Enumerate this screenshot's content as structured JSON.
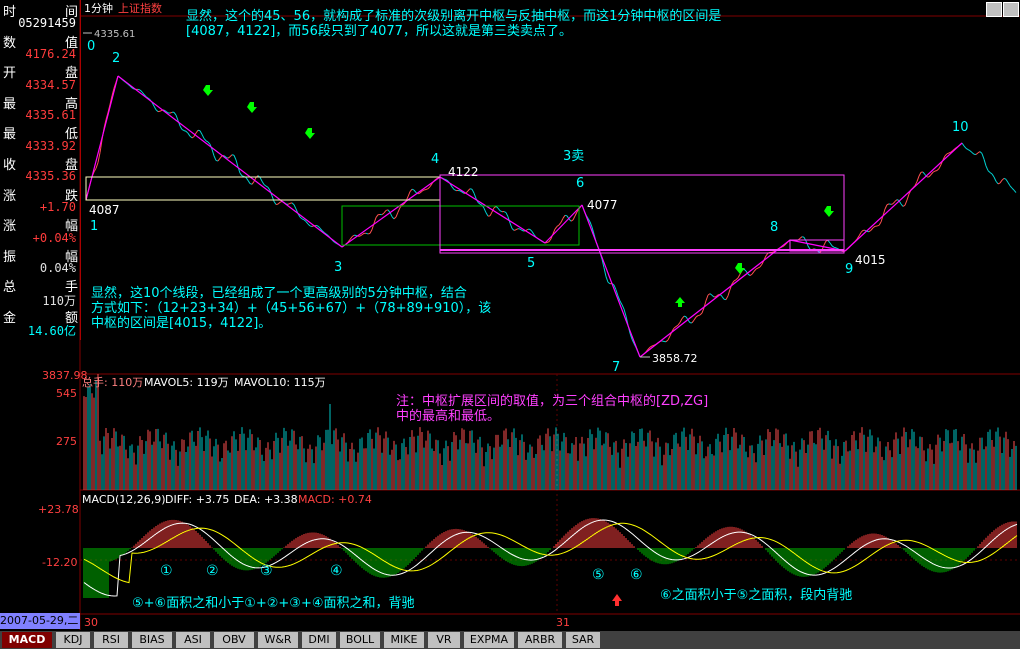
{
  "header": {
    "period": "1分钟",
    "symbol": "上证指数",
    "price_label": "4335.61"
  },
  "info_panel": [
    {
      "key": "时",
      "value": "",
      "unit": "间",
      "color": "#ffffff"
    },
    {
      "key": "",
      "value": "05291459",
      "unit": "",
      "color": "#ffffff"
    },
    {
      "key": "数",
      "value": "",
      "unit": "值",
      "color": "#ffffff"
    },
    {
      "key": "",
      "value": "4176.24",
      "unit": "",
      "color": "#ff3c3c"
    },
    {
      "key": "开",
      "value": "",
      "unit": "盘",
      "color": "#ffffff"
    },
    {
      "key": "",
      "value": "4334.57",
      "unit": "",
      "color": "#ff3c3c"
    },
    {
      "key": "最",
      "value": "",
      "unit": "高",
      "color": "#ffffff"
    },
    {
      "key": "",
      "value": "4335.61",
      "unit": "",
      "color": "#ff3c3c"
    },
    {
      "key": "最",
      "value": "",
      "unit": "低",
      "color": "#ffffff"
    },
    {
      "key": "",
      "value": "4333.92",
      "unit": "",
      "color": "#ff3c3c"
    },
    {
      "key": "收",
      "value": "",
      "unit": "盘",
      "color": "#ffffff"
    },
    {
      "key": "",
      "value": "4335.36",
      "unit": "",
      "color": "#ff3c3c"
    },
    {
      "key": "涨",
      "value": "",
      "unit": "跌",
      "color": "#ffffff"
    },
    {
      "key": "",
      "value": "+1.70",
      "unit": "",
      "color": "#ff3c3c"
    },
    {
      "key": "涨",
      "value": "",
      "unit": "幅",
      "color": "#ffffff"
    },
    {
      "key": "",
      "value": "+0.04%",
      "unit": "",
      "color": "#ff3c3c"
    },
    {
      "key": "振",
      "value": "",
      "unit": "幅",
      "color": "#ffffff"
    },
    {
      "key": "",
      "value": "0.04%",
      "unit": "",
      "color": "#e0e0e0"
    },
    {
      "key": "总",
      "value": "",
      "unit": "手",
      "color": "#ffffff"
    },
    {
      "key": "",
      "value": "110万",
      "unit": "",
      "color": "#e0e0e0"
    },
    {
      "key": "金",
      "value": "",
      "unit": "额",
      "color": "#ffffff"
    },
    {
      "key": "",
      "value": "14.60亿",
      "unit": "",
      "color": "#00ffff"
    }
  ],
  "annotations": {
    "top_note": "显然，这个的45、56，就构成了标准的次级别离开中枢与反抽中枢，而这1分钟中枢的区间是\n[4087，4122]，而56段只到了4077，所以这就是第三类卖点了。",
    "mid_note": "显然，这10个线段，已经组成了一个更高级别的5分钟中枢，结合\n方式如下：（12+23+34）+（45+56+67）+（78+89+910），该\n中枢的区间是[4015，4122]。",
    "volume_note": "注：中枢扩展区间的取值，为三个组合中枢的[ZD,ZG]\n中的最高和最低。",
    "macd_note_left": "⑤+⑥面积之和小于①+②+③+④面积之和，背驰",
    "macd_note_right": "⑥之面积小于⑤之面积，段内背驰",
    "sell3_label": "3卖",
    "circled": [
      "①",
      "②",
      "③",
      "④",
      "⑤",
      "⑥"
    ]
  },
  "volume_panel": {
    "label": "总手: 110万",
    "ma5_label": "MAVOL5: 119万",
    "ma10_label": "MAVOL10: 115万",
    "ticks": [
      "545",
      "275"
    ],
    "top_value": "3837.98"
  },
  "macd_panel": {
    "label": "MACD(12,26,9)",
    "diff_label": "DIFF: +3.75",
    "dea_label": "DEA: +3.38",
    "macd_label": "MACD: +0.74",
    "ticks": [
      "+23.78",
      "-12.20"
    ]
  },
  "footer": {
    "date": "2007-05-29,二",
    "day_labels": [
      "30",
      "31"
    ],
    "tabs": [
      "MACD",
      "KDJ",
      "RSI",
      "BIAS",
      "ASI",
      "OBV",
      "W&R",
      "DMI",
      "BOLL",
      "MIKE",
      "VR",
      "EXPMA",
      "ARBR",
      "SAR"
    ]
  },
  "chart_data": {
    "type": "line",
    "title": "",
    "segment_points": [
      {
        "label": "0",
        "value": null
      },
      {
        "label": "1",
        "value": 4087
      },
      {
        "label": "2",
        "value": null
      },
      {
        "label": "3",
        "value": null
      },
      {
        "label": "4",
        "value": 4122
      },
      {
        "label": "5",
        "value": null
      },
      {
        "label": "6",
        "value": 4077
      },
      {
        "label": "7",
        "value": 3858.72
      },
      {
        "label": "8",
        "value": null
      },
      {
        "label": "9",
        "value": 4015
      },
      {
        "label": "10",
        "value": null
      }
    ],
    "price_labels": [
      "4087",
      "4122",
      "4077",
      "3858.72",
      "4015",
      "4335.61"
    ],
    "zhongshu_1min": [
      4087,
      4122
    ],
    "zhongshu_5min": [
      4015,
      4122
    ],
    "colors": {
      "segment": "#ff00ff",
      "price_up": "#ff5050",
      "price_down": "#00d0d0",
      "box1": "#ffffc0",
      "box_green": "#00c000",
      "box_pink": "#ff40ff",
      "diff": "#ffffff",
      "dea": "#ffff00"
    }
  }
}
